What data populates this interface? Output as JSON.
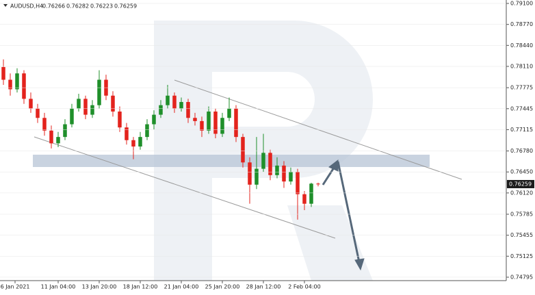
{
  "header": {
    "symbol": "AUDUSD,H4",
    "open": 0.76266,
    "high": 0.76282,
    "low": 0.76223,
    "close": 0.76259
  },
  "chart_data": {
    "type": "candlestick",
    "up_color": "#1f8f2a",
    "down_color": "#e3231d",
    "xlim": [
      -0.5,
      73.5
    ],
    "xticks": [
      {
        "value": 1.7,
        "label": "6 Jan 2021"
      },
      {
        "value": 8,
        "label": "11 Jan 04:00"
      },
      {
        "value": 14,
        "label": "13 Jan 20:00"
      },
      {
        "value": 20,
        "label": "18 Jan 12:00"
      },
      {
        "value": 26,
        "label": "21 Jan 04:00"
      },
      {
        "value": 32,
        "label": "25 Jan 20:00"
      },
      {
        "value": 38,
        "label": "28 Jan 12:00"
      },
      {
        "value": 44,
        "label": "2 Feb 04:00"
      }
    ],
    "ylim": [
      0.74741,
      0.79154
    ],
    "yticks": [
      {
        "value": 0.791,
        "label": "0.79100"
      },
      {
        "value": 0.7877,
        "label": "0.78770"
      },
      {
        "value": 0.7844,
        "label": "0.78440"
      },
      {
        "value": 0.7811,
        "label": "0.78110"
      },
      {
        "value": 0.77775,
        "label": "0.77775"
      },
      {
        "value": 0.77445,
        "label": "0.77445"
      },
      {
        "value": 0.77115,
        "label": "0.77115"
      },
      {
        "value": 0.7678,
        "label": "0.76780"
      },
      {
        "value": 0.7645,
        "label": "0.76450"
      },
      {
        "value": 0.7612,
        "label": "0.76120"
      },
      {
        "value": 0.75785,
        "label": "0.75785"
      },
      {
        "value": 0.75455,
        "label": "0.75455"
      },
      {
        "value": 0.75125,
        "label": "0.75125"
      },
      {
        "value": 0.74795,
        "label": "0.74795"
      }
    ],
    "open": [
      0.781,
      0.779,
      0.7775,
      0.78,
      0.776,
      0.7745,
      0.773,
      0.771,
      0.769,
      0.77,
      0.772,
      0.7745,
      0.776,
      0.7735,
      0.775,
      0.779,
      0.7765,
      0.774,
      0.7715,
      0.7695,
      0.7685,
      0.77,
      0.772,
      0.7735,
      0.775,
      0.7765,
      0.7745,
      0.7755,
      0.773,
      0.7725,
      0.771,
      0.774,
      0.7705,
      0.773,
      0.7745,
      0.77,
      0.766,
      0.7625,
      0.765,
      0.7675,
      0.764,
      0.7655,
      0.763,
      0.7645,
      0.761,
      0.7595,
      0.76266
    ],
    "high": [
      0.7822,
      0.78,
      0.7808,
      0.7805,
      0.777,
      0.7752,
      0.7738,
      0.7718,
      0.7708,
      0.7728,
      0.7752,
      0.7768,
      0.7765,
      0.7758,
      0.7805,
      0.7798,
      0.7772,
      0.7748,
      0.7722,
      0.77,
      0.7708,
      0.7728,
      0.7742,
      0.7758,
      0.7782,
      0.777,
      0.7762,
      0.776,
      0.7738,
      0.7732,
      0.7748,
      0.7745,
      0.7738,
      0.7762,
      0.775,
      0.7705,
      0.7668,
      0.77,
      0.7705,
      0.768,
      0.7668,
      0.7662,
      0.7652,
      0.765,
      0.7615,
      0.7628,
      0.76282
    ],
    "low": [
      0.7782,
      0.7765,
      0.777,
      0.7752,
      0.7738,
      0.7722,
      0.7702,
      0.7682,
      0.7684,
      0.7695,
      0.7715,
      0.774,
      0.7728,
      0.773,
      0.7745,
      0.7758,
      0.7732,
      0.7708,
      0.7688,
      0.7665,
      0.768,
      0.7695,
      0.7712,
      0.773,
      0.7745,
      0.7738,
      0.774,
      0.7722,
      0.7718,
      0.77,
      0.7705,
      0.7698,
      0.77,
      0.7725,
      0.7692,
      0.7652,
      0.7595,
      0.7618,
      0.7645,
      0.7632,
      0.7635,
      0.762,
      0.7625,
      0.757,
      0.7585,
      0.759,
      0.76223
    ],
    "close": [
      0.779,
      0.7775,
      0.78,
      0.776,
      0.7745,
      0.773,
      0.771,
      0.769,
      0.77,
      0.772,
      0.7745,
      0.776,
      0.7735,
      0.775,
      0.779,
      0.7765,
      0.774,
      0.7715,
      0.7695,
      0.7685,
      0.77,
      0.772,
      0.7735,
      0.775,
      0.7765,
      0.7745,
      0.7755,
      0.773,
      0.7725,
      0.771,
      0.774,
      0.7705,
      0.773,
      0.7745,
      0.77,
      0.766,
      0.7625,
      0.765,
      0.7675,
      0.764,
      0.7655,
      0.763,
      0.7645,
      0.761,
      0.7595,
      0.76266,
      0.76259
    ]
  }
}
